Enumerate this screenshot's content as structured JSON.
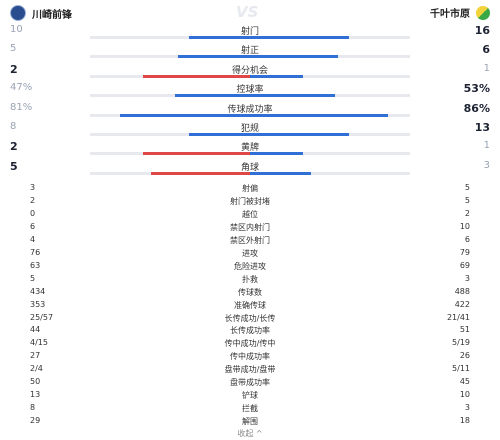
{
  "header": {
    "home_team": "川崎前锋",
    "away_team": "千叶市原",
    "vs": "VS"
  },
  "bar_stats": [
    {
      "label": "射门",
      "home": "10",
      "away": "16",
      "home_frac": 0.38,
      "away_frac": 0.62,
      "home_color": "blue",
      "away_color": "blue",
      "win": "away"
    },
    {
      "label": "射正",
      "home": "5",
      "away": "6",
      "home_frac": 0.45,
      "away_frac": 0.55,
      "home_color": "blue",
      "away_color": "blue",
      "win": "away"
    },
    {
      "label": "得分机会",
      "home": "2",
      "away": "1",
      "home_frac": 0.67,
      "away_frac": 0.33,
      "home_color": "red",
      "away_color": "blue",
      "win": "home"
    },
    {
      "label": "控球率",
      "home": "47%",
      "away": "53%",
      "home_frac": 0.47,
      "away_frac": 0.53,
      "home_color": "blue",
      "away_color": "blue",
      "win": "away"
    },
    {
      "label": "传球成功率",
      "home": "81%",
      "away": "86%",
      "home_frac": 0.81,
      "away_frac": 0.86,
      "home_color": "blue",
      "away_color": "blue",
      "win": "away"
    },
    {
      "label": "犯规",
      "home": "8",
      "away": "13",
      "home_frac": 0.38,
      "away_frac": 0.62,
      "home_color": "blue",
      "away_color": "blue",
      "win": "away"
    },
    {
      "label": "黄牌",
      "home": "2",
      "away": "1",
      "home_frac": 0.67,
      "away_frac": 0.33,
      "home_color": "red",
      "away_color": "blue",
      "win": "home"
    },
    {
      "label": "角球",
      "home": "5",
      "away": "3",
      "home_frac": 0.62,
      "away_frac": 0.38,
      "home_color": "red",
      "away_color": "blue",
      "win": "home"
    }
  ],
  "text_stats": [
    {
      "label": "射偏",
      "home": "3",
      "away": "5"
    },
    {
      "label": "射门被封堵",
      "home": "2",
      "away": "5"
    },
    {
      "label": "越位",
      "home": "0",
      "away": "2"
    },
    {
      "label": "禁区内射门",
      "home": "6",
      "away": "10"
    },
    {
      "label": "禁区外射门",
      "home": "4",
      "away": "6"
    },
    {
      "label": "进攻",
      "home": "76",
      "away": "79"
    },
    {
      "label": "危险进攻",
      "home": "63",
      "away": "69"
    },
    {
      "label": "扑救",
      "home": "5",
      "away": "3"
    },
    {
      "label": "传球数",
      "home": "434",
      "away": "488"
    },
    {
      "label": "准确传球",
      "home": "353",
      "away": "422"
    },
    {
      "label": "长传成功/长传",
      "home": "25/57",
      "away": "21/41"
    },
    {
      "label": "长传成功率",
      "home": "44",
      "away": "51"
    },
    {
      "label": "传中成功/传中",
      "home": "4/15",
      "away": "5/19"
    },
    {
      "label": "传中成功率",
      "home": "27",
      "away": "26"
    },
    {
      "label": "盘带成功/盘带",
      "home": "2/4",
      "away": "5/11"
    },
    {
      "label": "盘带成功率",
      "home": "50",
      "away": "45"
    },
    {
      "label": "铲球",
      "home": "13",
      "away": "10"
    },
    {
      "label": "拦截",
      "home": "8",
      "away": "3"
    },
    {
      "label": "解围",
      "home": "29",
      "away": "18"
    }
  ],
  "collapse_label": "收起 ^"
}
